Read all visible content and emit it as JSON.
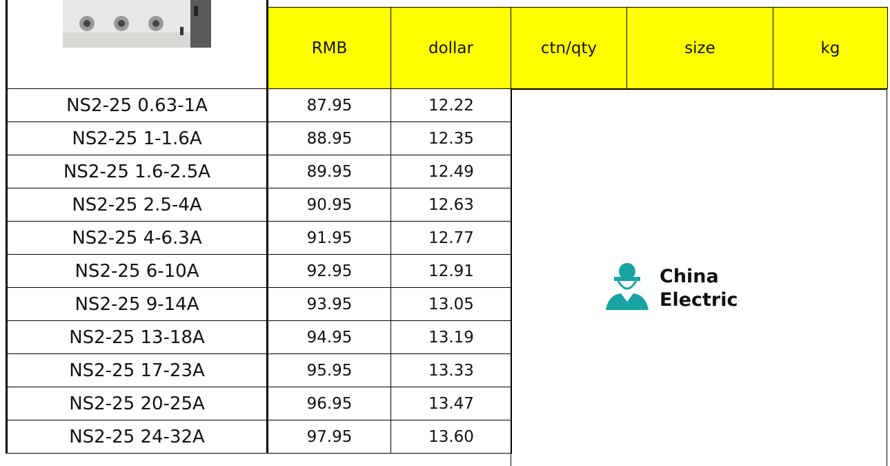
{
  "header": {
    "columns": [
      "RMB",
      "dollar",
      "ctn/qty",
      "size",
      "kg"
    ]
  },
  "table": {
    "rows": [
      [
        "NS2-25 0.63-1A",
        "87.95",
        "12.22"
      ],
      [
        "NS2-25 1-1.6A",
        "88.95",
        "12.35"
      ],
      [
        "NS2-25 1.6-2.5A",
        "89.95",
        "12.49"
      ],
      [
        "NS2-25 2.5-4A",
        "90.95",
        "12.63"
      ],
      [
        "NS2-25 4-6.3A",
        "91.95",
        "12.77"
      ],
      [
        "NS2-25 6-10A",
        "92.95",
        "12.91"
      ],
      [
        "NS2-25 9-14A",
        "93.95",
        "13.05"
      ],
      [
        "NS2-25 13-18A",
        "94.95",
        "13.19"
      ],
      [
        "NS2-25 17-23A",
        "95.95",
        "13.33"
      ],
      [
        "NS2-25 20-25A",
        "96.95",
        "13.47"
      ],
      [
        "NS2-25 24-32A",
        "97.95",
        "13.60"
      ]
    ]
  },
  "logo": {
    "line1": "China",
    "line2": "Electric"
  }
}
